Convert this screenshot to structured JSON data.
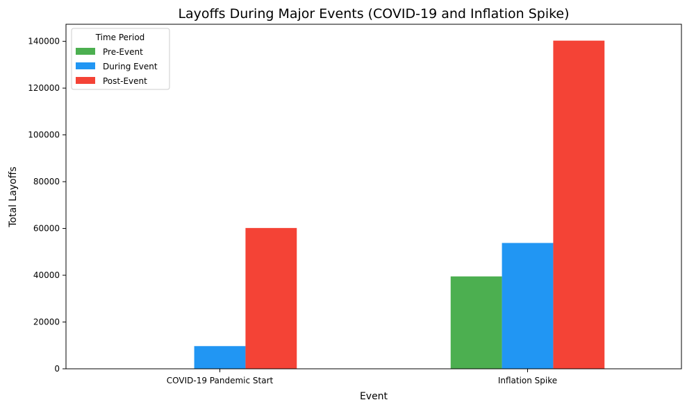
{
  "chart_data": {
    "type": "bar",
    "title": "Layoffs During Major Events (COVID-19 and Inflation Spike)",
    "xlabel": "Event",
    "ylabel": "Total Layoffs",
    "categories": [
      "COVID-19 Pandemic Start",
      "Inflation Spike"
    ],
    "series": [
      {
        "name": "Pre-Event",
        "color": "#4caf50",
        "values": [
          0,
          39500
        ]
      },
      {
        "name": "During Event",
        "color": "#2196f3",
        "values": [
          9700,
          53800
        ]
      },
      {
        "name": "Post-Event",
        "color": "#f44336",
        "values": [
          60200,
          140300
        ]
      }
    ],
    "ylim": [
      0,
      147300
    ],
    "yticks": [
      0,
      20000,
      40000,
      60000,
      80000,
      100000,
      120000,
      140000
    ],
    "legend": {
      "title": "Time Period",
      "position": "top-left"
    },
    "grid": false
  }
}
